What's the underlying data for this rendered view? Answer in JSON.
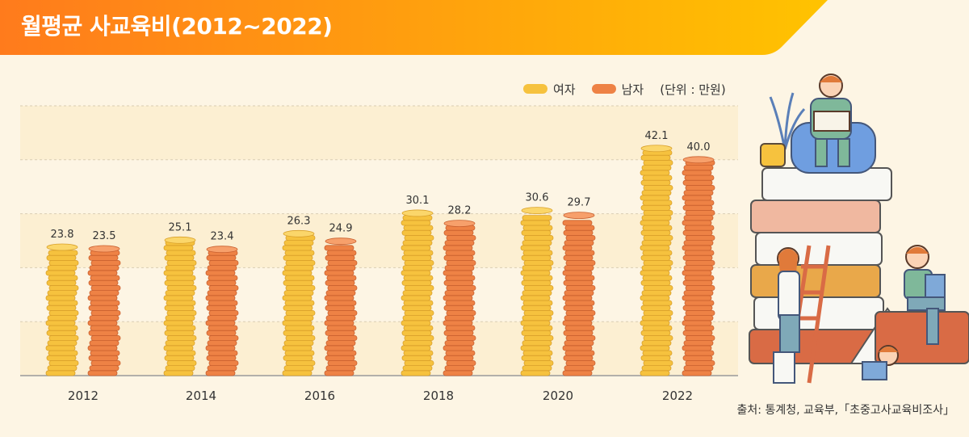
{
  "title": "월평균 사교육비(2012~2022)",
  "legend": {
    "female": "여자",
    "male": "남자",
    "unit": "(단위 : 만원)"
  },
  "source": "출처: 통계청, 교육부,「초중고사교육비조사」",
  "colors": {
    "female": "#f6c23e",
    "male": "#ee8245",
    "header_start": "#ff7b1c",
    "header_end": "#ffc300"
  },
  "chart_data": {
    "type": "bar",
    "categories": [
      "2012",
      "2014",
      "2016",
      "2018",
      "2020",
      "2022"
    ],
    "series": [
      {
        "name": "여자",
        "values": [
          23.8,
          25.1,
          26.3,
          30.1,
          30.6,
          42.1
        ]
      },
      {
        "name": "남자",
        "values": [
          23.5,
          23.4,
          24.9,
          28.2,
          29.7,
          40.0
        ]
      }
    ],
    "value_labels": [
      [
        "23.8",
        "25.1",
        "26.3",
        "30.1",
        "30.6",
        "42.1"
      ],
      [
        "23.5",
        "23.4",
        "24.9",
        "28.2",
        "29.7",
        "40.0"
      ]
    ],
    "unit": "만원",
    "ylim": [
      0,
      50
    ],
    "grid": true,
    "legend_position": "top-right"
  }
}
